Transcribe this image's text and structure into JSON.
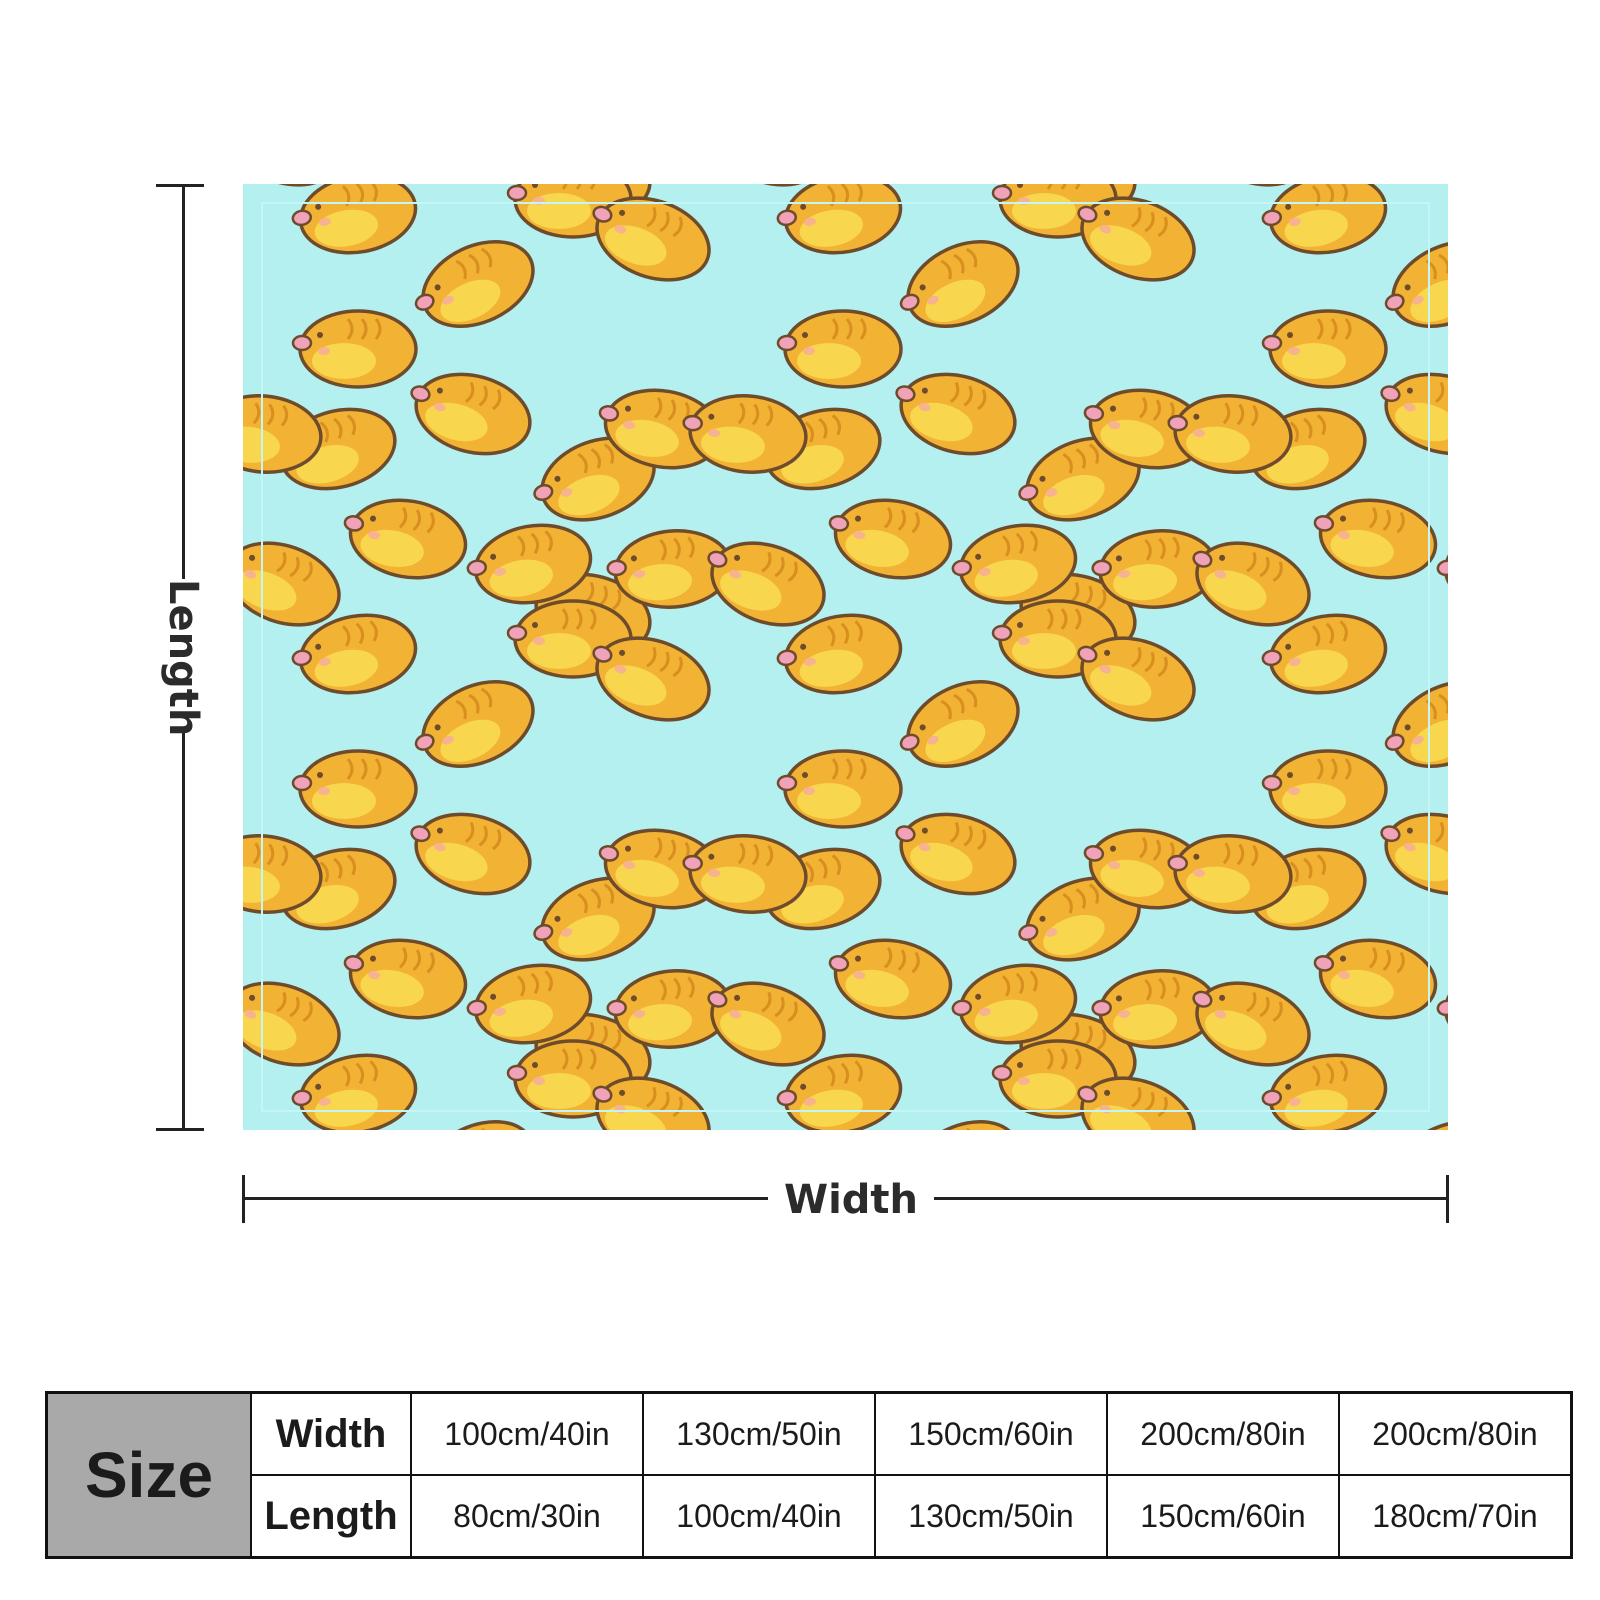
{
  "dimensions": {
    "length_label": "Length",
    "width_label": "Width"
  },
  "colors": {
    "blanket_background": "#b4f0ef",
    "bird_body": "#f2b234",
    "bird_light": "#f8d64e",
    "bird_outline": "#6e4b2a",
    "beak": "#f0a2b8",
    "size_header_fill": "#a9a9a9"
  },
  "size_table": {
    "header": "Size",
    "rows": [
      {
        "label": "Width",
        "values": [
          "100cm/40in",
          "130cm/50in",
          "150cm/60in",
          "200cm/80in",
          "200cm/80in"
        ]
      },
      {
        "label": "Length",
        "values": [
          "80cm/30in",
          "100cm/40in",
          "130cm/50in",
          "150cm/60in",
          "180cm/70in"
        ]
      }
    ]
  }
}
